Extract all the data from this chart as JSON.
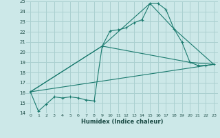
{
  "title": "",
  "xlabel": "Humidex (Indice chaleur)",
  "ylabel": "",
  "bg_color": "#cce8e8",
  "grid_color": "#aad0d0",
  "line_color": "#1a7a6e",
  "marker": "+",
  "ylim": [
    14,
    25
  ],
  "xlim": [
    -0.5,
    23.5
  ],
  "yticks": [
    14,
    15,
    16,
    17,
    18,
    19,
    20,
    21,
    22,
    23,
    24,
    25
  ],
  "xticks": [
    0,
    1,
    2,
    3,
    4,
    5,
    6,
    7,
    8,
    9,
    10,
    11,
    12,
    13,
    14,
    15,
    16,
    17,
    18,
    19,
    20,
    21,
    22,
    23
  ],
  "series": [
    {
      "x": [
        0,
        1,
        2,
        3,
        4,
        5,
        6,
        7,
        8,
        9,
        10,
        11,
        12,
        13,
        14,
        15,
        16,
        17,
        18,
        19,
        20,
        21,
        22,
        23
      ],
      "y": [
        16.1,
        14.2,
        14.9,
        15.6,
        15.5,
        15.6,
        15.5,
        15.3,
        15.2,
        20.6,
        22.1,
        22.2,
        22.4,
        22.9,
        23.2,
        24.8,
        24.8,
        24.2,
        22.3,
        21.0,
        19.0,
        18.7,
        18.7,
        18.8
      ],
      "markers": true
    },
    {
      "comment": "triangle line: 0->9->15->18->23",
      "x": [
        0,
        9,
        15,
        18,
        23
      ],
      "y": [
        16.1,
        20.6,
        24.8,
        22.3,
        18.8
      ],
      "markers": false
    },
    {
      "comment": "triangle line: 0->9->20->23",
      "x": [
        0,
        9,
        20,
        23
      ],
      "y": [
        16.1,
        20.6,
        19.0,
        18.8
      ],
      "markers": false
    },
    {
      "x": [
        0,
        23
      ],
      "y": [
        16.1,
        18.8
      ],
      "markers": false
    }
  ]
}
